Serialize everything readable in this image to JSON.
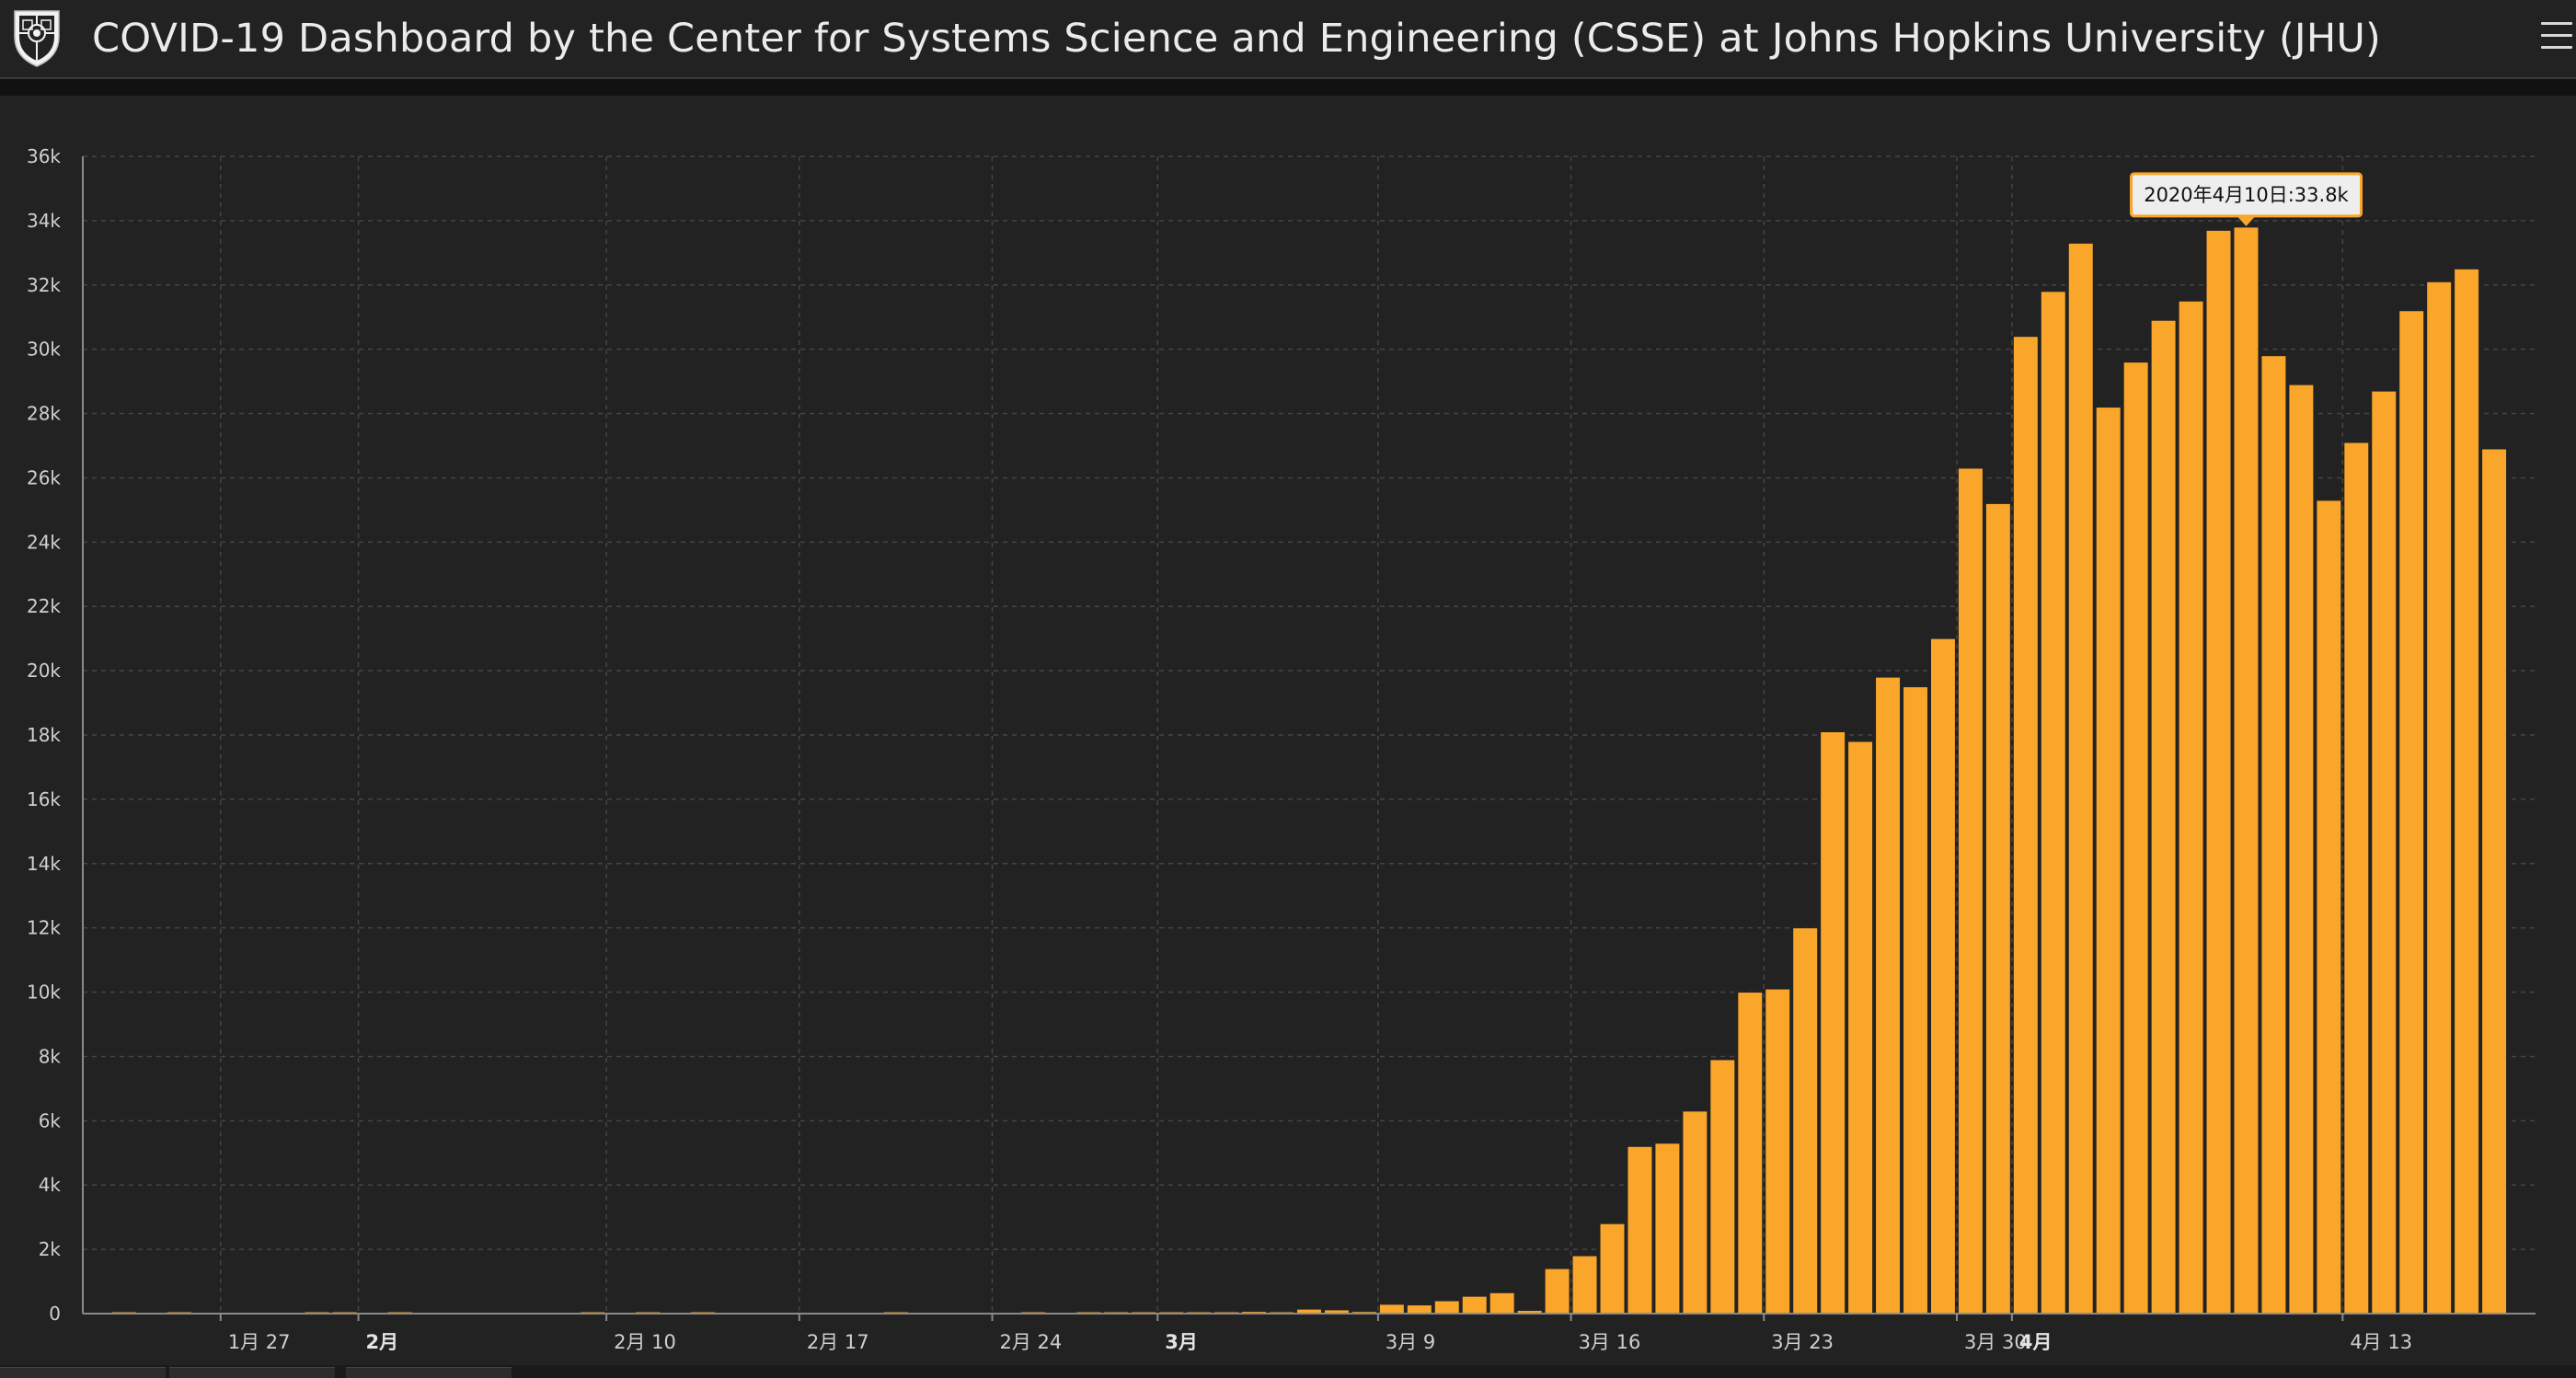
{
  "header": {
    "title": "COVID-19 Dashboard by the Center for Systems Science and Engineering (CSSE) at Johns Hopkins University (JHU)",
    "logo_icon": "university-shield-logo",
    "menu_icon": "hamburger-menu-icon"
  },
  "colors": {
    "bar": "#FAA62A",
    "bar_edge": "#222222",
    "panel_bg": "#222222",
    "page_bg": "#111111",
    "tooltip_bg": "#eeeeee",
    "tooltip_border": "#FAA62A"
  },
  "chart_data": {
    "type": "bar",
    "title": "",
    "xlabel": "",
    "ylabel": "",
    "ylim": [
      0,
      36000
    ],
    "yticks": [
      0,
      2000,
      4000,
      6000,
      8000,
      10000,
      12000,
      14000,
      16000,
      18000,
      20000,
      22000,
      24000,
      26000,
      28000,
      30000,
      32000,
      34000,
      36000
    ],
    "ytick_labels": [
      "0",
      "2k",
      "4k",
      "6k",
      "8k",
      "10k",
      "12k",
      "14k",
      "16k",
      "18k",
      "20k",
      "22k",
      "24k",
      "26k",
      "28k",
      "30k",
      "32k",
      "34k",
      "36k"
    ],
    "grid": true,
    "x_start": "2020-01-22",
    "x_end": "2020-04-20",
    "xticks": [
      {
        "date": "2020-01-27",
        "label": "1月 27",
        "bold": false
      },
      {
        "date": "2020-02-01",
        "label": "2月",
        "bold": true
      },
      {
        "date": "2020-02-10",
        "label": "2月 10",
        "bold": false
      },
      {
        "date": "2020-02-17",
        "label": "2月 17",
        "bold": false
      },
      {
        "date": "2020-02-24",
        "label": "2月 24",
        "bold": false
      },
      {
        "date": "2020-03-01",
        "label": "3月",
        "bold": true
      },
      {
        "date": "2020-03-09",
        "label": "3月 9",
        "bold": false
      },
      {
        "date": "2020-03-16",
        "label": "3月 16",
        "bold": false
      },
      {
        "date": "2020-03-23",
        "label": "3月 23",
        "bold": false
      },
      {
        "date": "2020-03-30",
        "label": "3月 30",
        "bold": false
      },
      {
        "date": "2020-04-01",
        "label": "4月",
        "bold": true
      },
      {
        "date": "2020-04-13",
        "label": "4月 13",
        "bold": false
      }
    ],
    "tooltip": {
      "date": "2020-04-10",
      "text": "2020年4月10日:33.8k"
    },
    "series": [
      {
        "x": [
          "2020-01-23",
          "2020-01-24",
          "2020-01-25",
          "2020-01-26",
          "2020-01-27",
          "2020-01-28",
          "2020-01-29",
          "2020-01-30",
          "2020-01-31",
          "2020-02-01",
          "2020-02-02",
          "2020-02-03",
          "2020-02-04",
          "2020-02-05",
          "2020-02-06",
          "2020-02-07",
          "2020-02-08",
          "2020-02-09",
          "2020-02-10",
          "2020-02-11",
          "2020-02-12",
          "2020-02-13",
          "2020-02-14",
          "2020-02-15",
          "2020-02-16",
          "2020-02-17",
          "2020-02-18",
          "2020-02-19",
          "2020-02-20",
          "2020-02-21",
          "2020-02-22",
          "2020-02-23",
          "2020-02-24",
          "2020-02-25",
          "2020-02-26",
          "2020-02-27",
          "2020-02-28",
          "2020-02-29",
          "2020-03-01",
          "2020-03-02",
          "2020-03-03",
          "2020-03-04",
          "2020-03-05",
          "2020-03-06",
          "2020-03-07",
          "2020-03-08",
          "2020-03-09",
          "2020-03-10",
          "2020-03-11",
          "2020-03-12",
          "2020-03-13",
          "2020-03-14",
          "2020-03-15",
          "2020-03-16",
          "2020-03-17",
          "2020-03-18",
          "2020-03-19",
          "2020-03-20",
          "2020-03-21",
          "2020-03-22",
          "2020-03-23",
          "2020-03-24",
          "2020-03-25",
          "2020-03-26",
          "2020-03-27",
          "2020-03-28",
          "2020-03-29",
          "2020-03-30",
          "2020-03-31",
          "2020-04-01",
          "2020-04-02",
          "2020-04-03",
          "2020-04-04",
          "2020-04-05",
          "2020-04-06",
          "2020-04-07",
          "2020-04-08",
          "2020-04-09",
          "2020-04-10",
          "2020-04-11",
          "2020-04-12",
          "2020-04-13",
          "2020-04-14",
          "2020-04-15",
          "2020-04-16",
          "2020-04-17",
          "2020-04-18",
          "2020-04-19"
        ],
        "values": [
          0,
          1,
          0,
          3,
          0,
          0,
          0,
          0,
          2,
          1,
          0,
          3,
          0,
          0,
          0,
          0,
          0,
          0,
          1,
          0,
          1,
          0,
          1,
          0,
          0,
          0,
          0,
          0,
          0,
          2,
          0,
          0,
          0,
          0,
          1,
          0,
          2,
          8,
          6,
          23,
          20,
          31,
          68,
          45,
          140,
          116,
          65,
          290,
          270,
          400,
          540,
          650,
          100,
          1400,
          1800,
          2800,
          5200,
          5300,
          6300,
          7900,
          10000,
          10100,
          12000,
          18100,
          17800,
          19800,
          19500,
          21000,
          26300,
          25200,
          30400,
          31800,
          33300,
          28200,
          29600,
          30900,
          31500,
          33700,
          33800,
          29800,
          28900,
          25300,
          27100,
          28700,
          31200,
          32100,
          32500,
          26900
        ]
      }
    ]
  }
}
